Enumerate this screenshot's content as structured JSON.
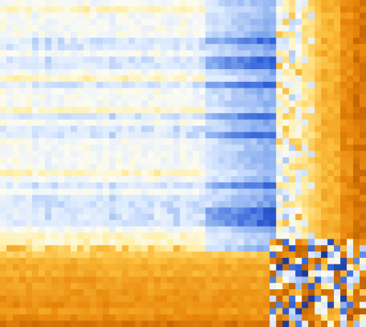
{
  "chart_data": {
    "type": "heatmap",
    "title": "",
    "xlabel": "",
    "ylabel": "",
    "grid": false,
    "legend": "none",
    "rows": 52,
    "cols": 57,
    "value_range": [
      0,
      1
    ],
    "colormap": [
      "#0a1a66",
      "#2f5fd8",
      "#8cb0f0",
      "#dceaff",
      "#fbfbf2",
      "#fff0a8",
      "#fbbd3a",
      "#e8860a",
      "#a84e00"
    ],
    "structure": {
      "left_background": {
        "col_end": 32,
        "row_end": 39,
        "value_min": 0.35,
        "value_max": 0.6
      },
      "blue_band": {
        "col_start": 32,
        "col_end": 43,
        "row_end": 38,
        "value_min": 0.1,
        "value_max": 0.3
      },
      "right_border": {
        "col_start": 47,
        "value_min": 0.68,
        "value_max": 0.85
      },
      "bottom_border": {
        "row_start": 40,
        "value_min": 0.72,
        "value_max": 0.88
      },
      "corner_block": {
        "col_start": 42,
        "row_start": 38,
        "pattern": "mixed"
      }
    }
  }
}
